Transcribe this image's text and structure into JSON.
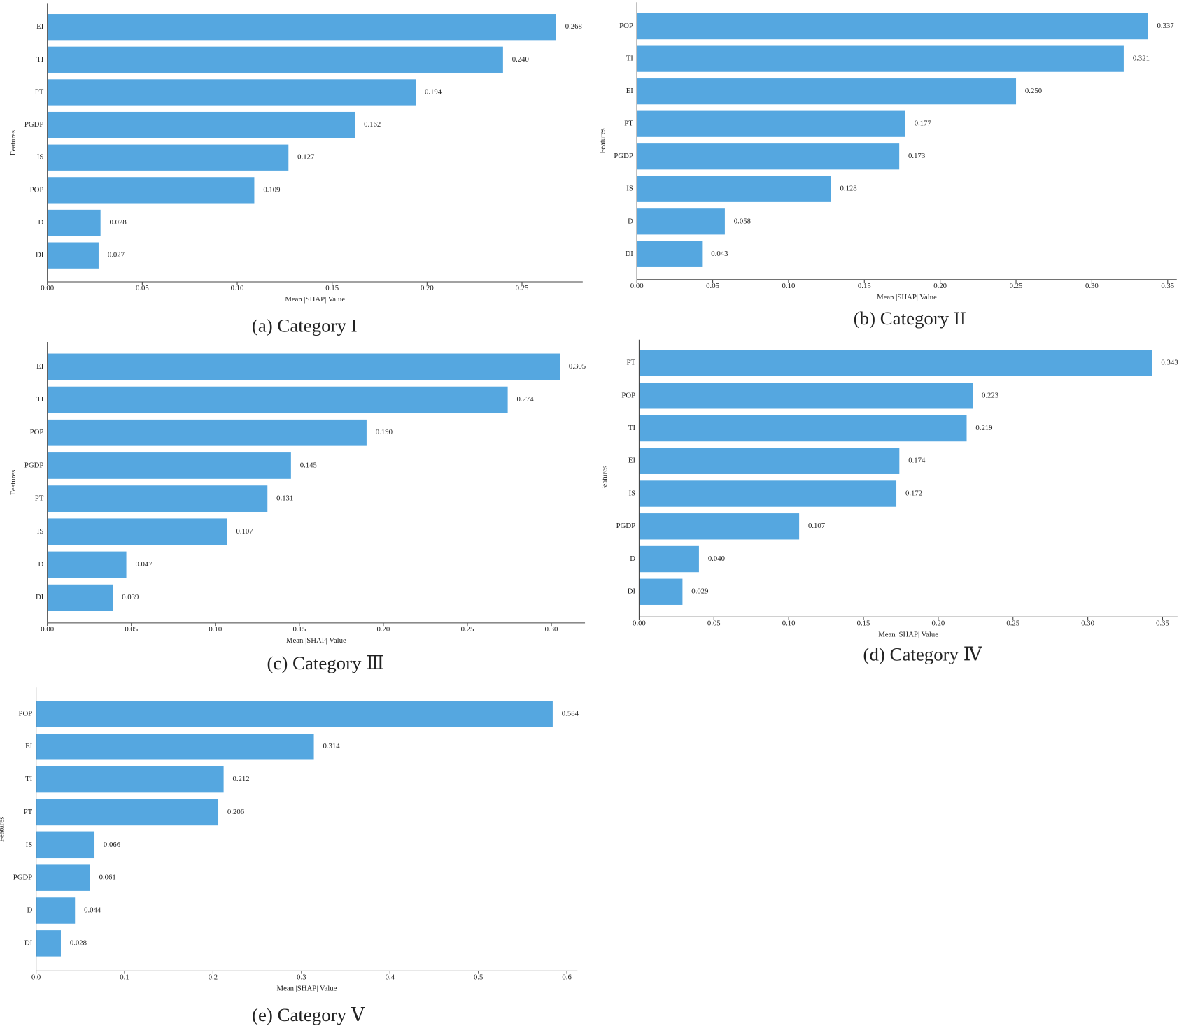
{
  "chart_data": [
    {
      "type": "barh",
      "caption": "(a)  Category I",
      "xlabel": "Mean |SHAP| Value",
      "ylabel": "Features",
      "color": "#55a7e0",
      "categories": [
        "EI",
        "TI",
        "PT",
        "PGDP",
        "IS",
        "POP",
        "D",
        "DI"
      ],
      "values": [
        0.268,
        0.24,
        0.194,
        0.162,
        0.127,
        0.109,
        0.028,
        0.027
      ],
      "value_labels": [
        "0.268",
        "0.240",
        "0.194",
        "0.162",
        "0.127",
        "0.109",
        "0.028",
        "0.027"
      ],
      "xlim": [
        0,
        0.282
      ],
      "xticks": [
        {
          "value": 0,
          "label": "0.00"
        },
        0.05,
        {
          "value": 0.1,
          "label": "0.10"
        },
        0.15,
        {
          "value": 0.2,
          "label": "0.20"
        },
        0.25
      ]
    },
    {
      "type": "barh",
      "caption": "(b) Category II",
      "xlabel": "Mean |SHAP| Value",
      "ylabel": "Features",
      "color": "#55a7e0",
      "categories": [
        "POP",
        "TI",
        "EI",
        "PT",
        "PGDP",
        "IS",
        "D",
        "DI"
      ],
      "values": [
        0.337,
        0.321,
        0.25,
        0.177,
        0.173,
        0.128,
        0.058,
        0.043
      ],
      "value_labels": [
        "0.337",
        "0.321",
        "0.250",
        "0.177",
        "0.173",
        "0.128",
        "0.058",
        "0.043"
      ],
      "xlim": [
        0,
        0.356
      ],
      "xticks": [
        {
          "value": 0,
          "label": "0.00"
        },
        0.05,
        {
          "value": 0.1,
          "label": "0.10"
        },
        0.15,
        {
          "value": 0.2,
          "label": "0.20"
        },
        0.25,
        {
          "value": 0.3,
          "label": "0.30"
        },
        0.35
      ]
    },
    {
      "type": "barh",
      "caption": "(c) Category  Ⅲ",
      "xlabel": "Mean |SHAP| Value",
      "ylabel": "Features",
      "color": "#55a7e0",
      "categories": [
        "EI",
        "TI",
        "POP",
        "PGDP",
        "PT",
        "IS",
        "D",
        "DI"
      ],
      "values": [
        0.305,
        0.274,
        0.19,
        0.145,
        0.131,
        0.107,
        0.047,
        0.039
      ],
      "value_labels": [
        "0.305",
        "0.274",
        "0.190",
        "0.145",
        "0.131",
        "0.107",
        "0.047",
        "0.039"
      ],
      "xlim": [
        0,
        0.32
      ],
      "xticks": [
        {
          "value": 0,
          "label": "0.00"
        },
        0.05,
        {
          "value": 0.1,
          "label": "0.10"
        },
        0.15,
        {
          "value": 0.2,
          "label": "0.20"
        },
        0.25,
        {
          "value": 0.3,
          "label": "0.30"
        }
      ]
    },
    {
      "type": "barh",
      "caption": "(d)  Category  Ⅳ",
      "xlabel": "Mean |SHAP| Value",
      "ylabel": "Features",
      "color": "#55a7e0",
      "categories": [
        "PT",
        "POP",
        "TI",
        "EI",
        "IS",
        "PGDP",
        "D",
        "DI"
      ],
      "values": [
        0.343,
        0.223,
        0.219,
        0.174,
        0.172,
        0.107,
        0.04,
        0.029
      ],
      "value_labels": [
        "0.343",
        "0.223",
        "0.219",
        "0.174",
        "0.172",
        "0.107",
        "0.040",
        "0.029"
      ],
      "xlim": [
        0,
        0.36
      ],
      "xticks": [
        {
          "value": 0,
          "label": "0.00"
        },
        0.05,
        {
          "value": 0.1,
          "label": "0.10"
        },
        0.15,
        {
          "value": 0.2,
          "label": "0.20"
        },
        0.25,
        {
          "value": 0.3,
          "label": "0.30"
        },
        0.35
      ]
    },
    {
      "type": "barh",
      "caption": "(e)  Category  Ⅴ",
      "xlabel": "Mean |SHAP| Value",
      "ylabel": "Features",
      "color": "#55a7e0",
      "categories": [
        "POP",
        "EI",
        "TI",
        "PT",
        "IS",
        "PGDP",
        "D",
        "DI"
      ],
      "values": [
        0.584,
        0.314,
        0.212,
        0.206,
        0.066,
        0.061,
        0.044,
        0.028
      ],
      "value_labels": [
        "0.584",
        "0.314",
        "0.212",
        "0.206",
        "0.066",
        "0.061",
        "0.044",
        "0.028"
      ],
      "xlim": [
        0,
        0.612
      ],
      "xticks": [
        {
          "value": 0,
          "label": "0.0"
        },
        0.1,
        0.2,
        0.3,
        0.4,
        0.5,
        0.6
      ]
    }
  ]
}
